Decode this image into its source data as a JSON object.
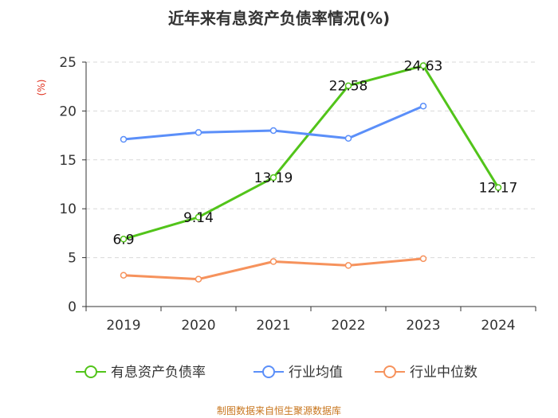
{
  "chart_data": {
    "type": "line",
    "title": "近年来有息资产负债率情况(%)",
    "unit_label": "(%)",
    "categories": [
      "2019",
      "2020",
      "2021",
      "2022",
      "2023",
      "2024"
    ],
    "ylim": [
      0,
      25
    ],
    "yticks": [
      0,
      5,
      10,
      15,
      20,
      25
    ],
    "grid": true,
    "legend_position": "bottom",
    "series": [
      {
        "name": "有息资产负债率",
        "color": "#52c41a",
        "values": [
          6.9,
          9.14,
          13.19,
          22.58,
          24.63,
          12.17
        ],
        "labels": [
          "6.9",
          "9.14",
          "13.19",
          "22.58",
          "24.63",
          "12.17"
        ]
      },
      {
        "name": "行业均值",
        "color": "#5b8ff9",
        "values": [
          17.1,
          17.8,
          18.0,
          17.2,
          20.5,
          null
        ]
      },
      {
        "name": "行业中位数",
        "color": "#f6925c",
        "values": [
          3.2,
          2.8,
          4.6,
          4.2,
          4.9,
          null
        ]
      }
    ],
    "source": "制图数据来自恒生聚源数据库"
  }
}
